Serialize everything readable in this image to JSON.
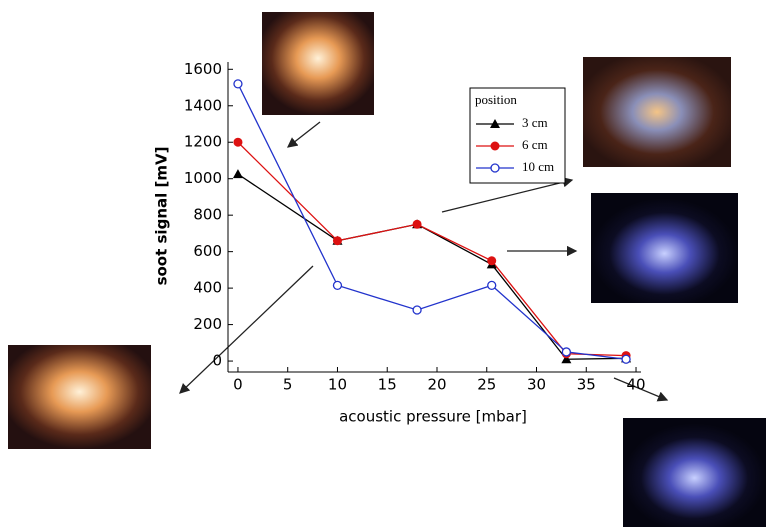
{
  "chart_data": {
    "type": "line",
    "x_label": "acoustic pressure [mbar]",
    "y_label": "soot signal [mV]",
    "legend_title": "position",
    "x": [
      0,
      10,
      18,
      25.5,
      33,
      39
    ],
    "series": [
      {
        "name": "3 cm",
        "color": "#000000",
        "marker": "triangle",
        "values": [
          1025,
          660,
          750,
          530,
          10,
          15
        ]
      },
      {
        "name": "6 cm",
        "color": "#dd1111",
        "marker": "filled-circle",
        "values": [
          1200,
          660,
          750,
          550,
          40,
          30
        ]
      },
      {
        "name": "10 cm",
        "color": "#2233cc",
        "marker": "open-circle",
        "values": [
          1520,
          415,
          280,
          415,
          50,
          10
        ]
      }
    ],
    "xlim": [
      -1,
      40.5
    ],
    "ylim": [
      -60,
      1640
    ],
    "xticks": [
      0,
      5,
      10,
      15,
      20,
      25,
      30,
      35,
      40
    ],
    "yticks": [
      0,
      200,
      400,
      600,
      800,
      1000,
      1200,
      1400,
      1600
    ],
    "grid": false
  }
}
